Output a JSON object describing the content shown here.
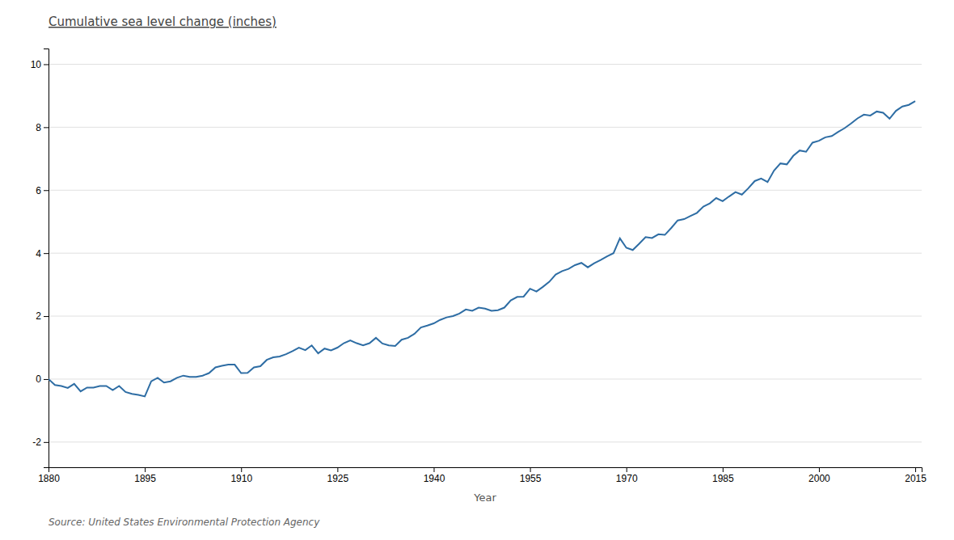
{
  "chart_data": {
    "type": "line",
    "title": "Cumulative sea level change (inches)",
    "xlabel": "Year",
    "annotations": [
      "Source: United States Environmental Protection Agency"
    ],
    "color": "#2E6DA4",
    "grid": true,
    "xlim": [
      1880,
      2016
    ],
    "ylim": [
      -2.8,
      10.5
    ],
    "xticks": [
      1880,
      1895,
      1910,
      1925,
      1940,
      1955,
      1970,
      1985,
      2000,
      2015
    ],
    "yticks": [
      -2,
      0,
      2,
      4,
      6,
      8,
      10
    ],
    "x": [
      1880,
      1881,
      1882,
      1883,
      1884,
      1885,
      1886,
      1887,
      1888,
      1889,
      1890,
      1891,
      1892,
      1893,
      1894,
      1895,
      1896,
      1897,
      1898,
      1899,
      1900,
      1901,
      1902,
      1903,
      1904,
      1905,
      1906,
      1907,
      1908,
      1909,
      1910,
      1911,
      1912,
      1913,
      1914,
      1915,
      1916,
      1917,
      1918,
      1919,
      1920,
      1921,
      1922,
      1923,
      1924,
      1925,
      1926,
      1927,
      1928,
      1929,
      1930,
      1931,
      1932,
      1933,
      1934,
      1935,
      1936,
      1937,
      1938,
      1939,
      1940,
      1941,
      1942,
      1943,
      1944,
      1945,
      1946,
      1947,
      1948,
      1949,
      1950,
      1951,
      1952,
      1953,
      1954,
      1955,
      1956,
      1957,
      1958,
      1959,
      1960,
      1961,
      1962,
      1963,
      1964,
      1965,
      1966,
      1967,
      1968,
      1969,
      1970,
      1971,
      1972,
      1973,
      1974,
      1975,
      1976,
      1977,
      1978,
      1979,
      1980,
      1981,
      1982,
      1983,
      1984,
      1985,
      1986,
      1987,
      1988,
      1989,
      1990,
      1991,
      1992,
      1993,
      1994,
      1995,
      1996,
      1997,
      1998,
      1999,
      2000,
      2001,
      2002,
      2003,
      2004,
      2005,
      2006,
      2007,
      2008,
      2009,
      2010,
      2011,
      2012,
      2013,
      2014,
      2015
    ],
    "values": [
      0.0,
      -0.19,
      -0.22,
      -0.28,
      -0.15,
      -0.39,
      -0.27,
      -0.27,
      -0.22,
      -0.22,
      -0.35,
      -0.22,
      -0.41,
      -0.47,
      -0.5,
      -0.55,
      -0.07,
      0.04,
      -0.11,
      -0.07,
      0.04,
      0.11,
      0.07,
      0.07,
      0.11,
      0.19,
      0.37,
      0.42,
      0.46,
      0.46,
      0.19,
      0.2,
      0.37,
      0.41,
      0.61,
      0.69,
      0.72,
      0.79,
      0.89,
      1.0,
      0.92,
      1.07,
      0.82,
      0.97,
      0.91,
      1.0,
      1.14,
      1.23,
      1.14,
      1.07,
      1.14,
      1.31,
      1.13,
      1.07,
      1.05,
      1.25,
      1.31,
      1.44,
      1.64,
      1.7,
      1.77,
      1.88,
      1.96,
      2.0,
      2.08,
      2.21,
      2.17,
      2.27,
      2.24,
      2.17,
      2.19,
      2.27,
      2.5,
      2.61,
      2.62,
      2.87,
      2.78,
      2.93,
      3.09,
      3.32,
      3.43,
      3.5,
      3.62,
      3.69,
      3.55,
      3.68,
      3.78,
      3.9,
      4.0,
      4.47,
      4.17,
      4.1,
      4.3,
      4.51,
      4.48,
      4.6,
      4.58,
      4.8,
      5.04,
      5.08,
      5.18,
      5.28,
      5.48,
      5.58,
      5.75,
      5.65,
      5.8,
      5.94,
      5.86,
      6.06,
      6.29,
      6.37,
      6.26,
      6.62,
      6.85,
      6.82,
      7.09,
      7.26,
      7.22,
      7.51,
      7.57,
      7.68,
      7.72,
      7.85,
      7.97,
      8.12,
      8.28,
      8.4,
      8.37,
      8.5,
      8.46,
      8.27,
      8.52,
      8.66,
      8.71,
      8.83
    ]
  }
}
